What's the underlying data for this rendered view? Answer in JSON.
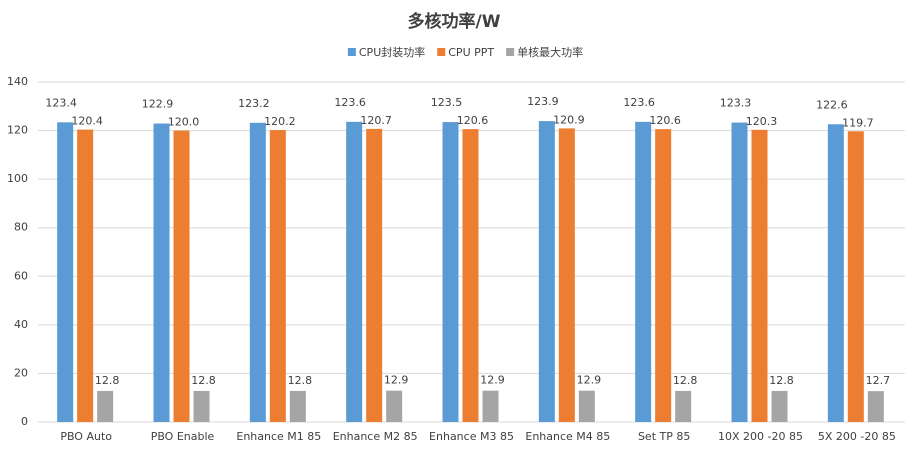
{
  "chart_data": {
    "type": "bar",
    "title": "多核功率/W",
    "categories": [
      "PBO Auto",
      "PBO Enable",
      "Enhance M1 85",
      "Enhance M2 85",
      "Enhance M3 85",
      "Enhance M4 85",
      "Set TP 85",
      "10X 200 -20 85",
      "5X 200 -20 85"
    ],
    "series": [
      {
        "name": "CPU封装功率",
        "color": "#5b9bd5",
        "values": [
          123.4,
          122.9,
          123.2,
          123.6,
          123.5,
          123.9,
          123.6,
          123.3,
          122.6
        ],
        "value_labels": [
          "123.4",
          "122.9",
          "123.2",
          "123.6",
          "123.5",
          "123.9",
          "123.6",
          "123.3",
          "122.6"
        ]
      },
      {
        "name": "CPU PPT",
        "color": "#ed7d31",
        "values": [
          120.4,
          120.0,
          120.2,
          120.7,
          120.6,
          120.9,
          120.6,
          120.3,
          119.7
        ],
        "value_labels": [
          "120.4",
          "120.0",
          "120.2",
          "120.7",
          "120.6",
          "120.9",
          "120.6",
          "120.3",
          "119.7"
        ]
      },
      {
        "name": "单核最大功率",
        "color": "#a5a5a5",
        "values": [
          12.8,
          12.8,
          12.8,
          12.9,
          12.9,
          12.9,
          12.8,
          12.8,
          12.7
        ],
        "value_labels": [
          "12.8",
          "12.8",
          "12.8",
          "12.9",
          "12.9",
          "12.9",
          "12.8",
          "12.8",
          "12.7"
        ]
      }
    ],
    "ylim": [
      0,
      140
    ],
    "yticks": [
      0,
      20,
      40,
      60,
      80,
      100,
      120,
      140
    ],
    "grid": true,
    "legend": "top"
  }
}
